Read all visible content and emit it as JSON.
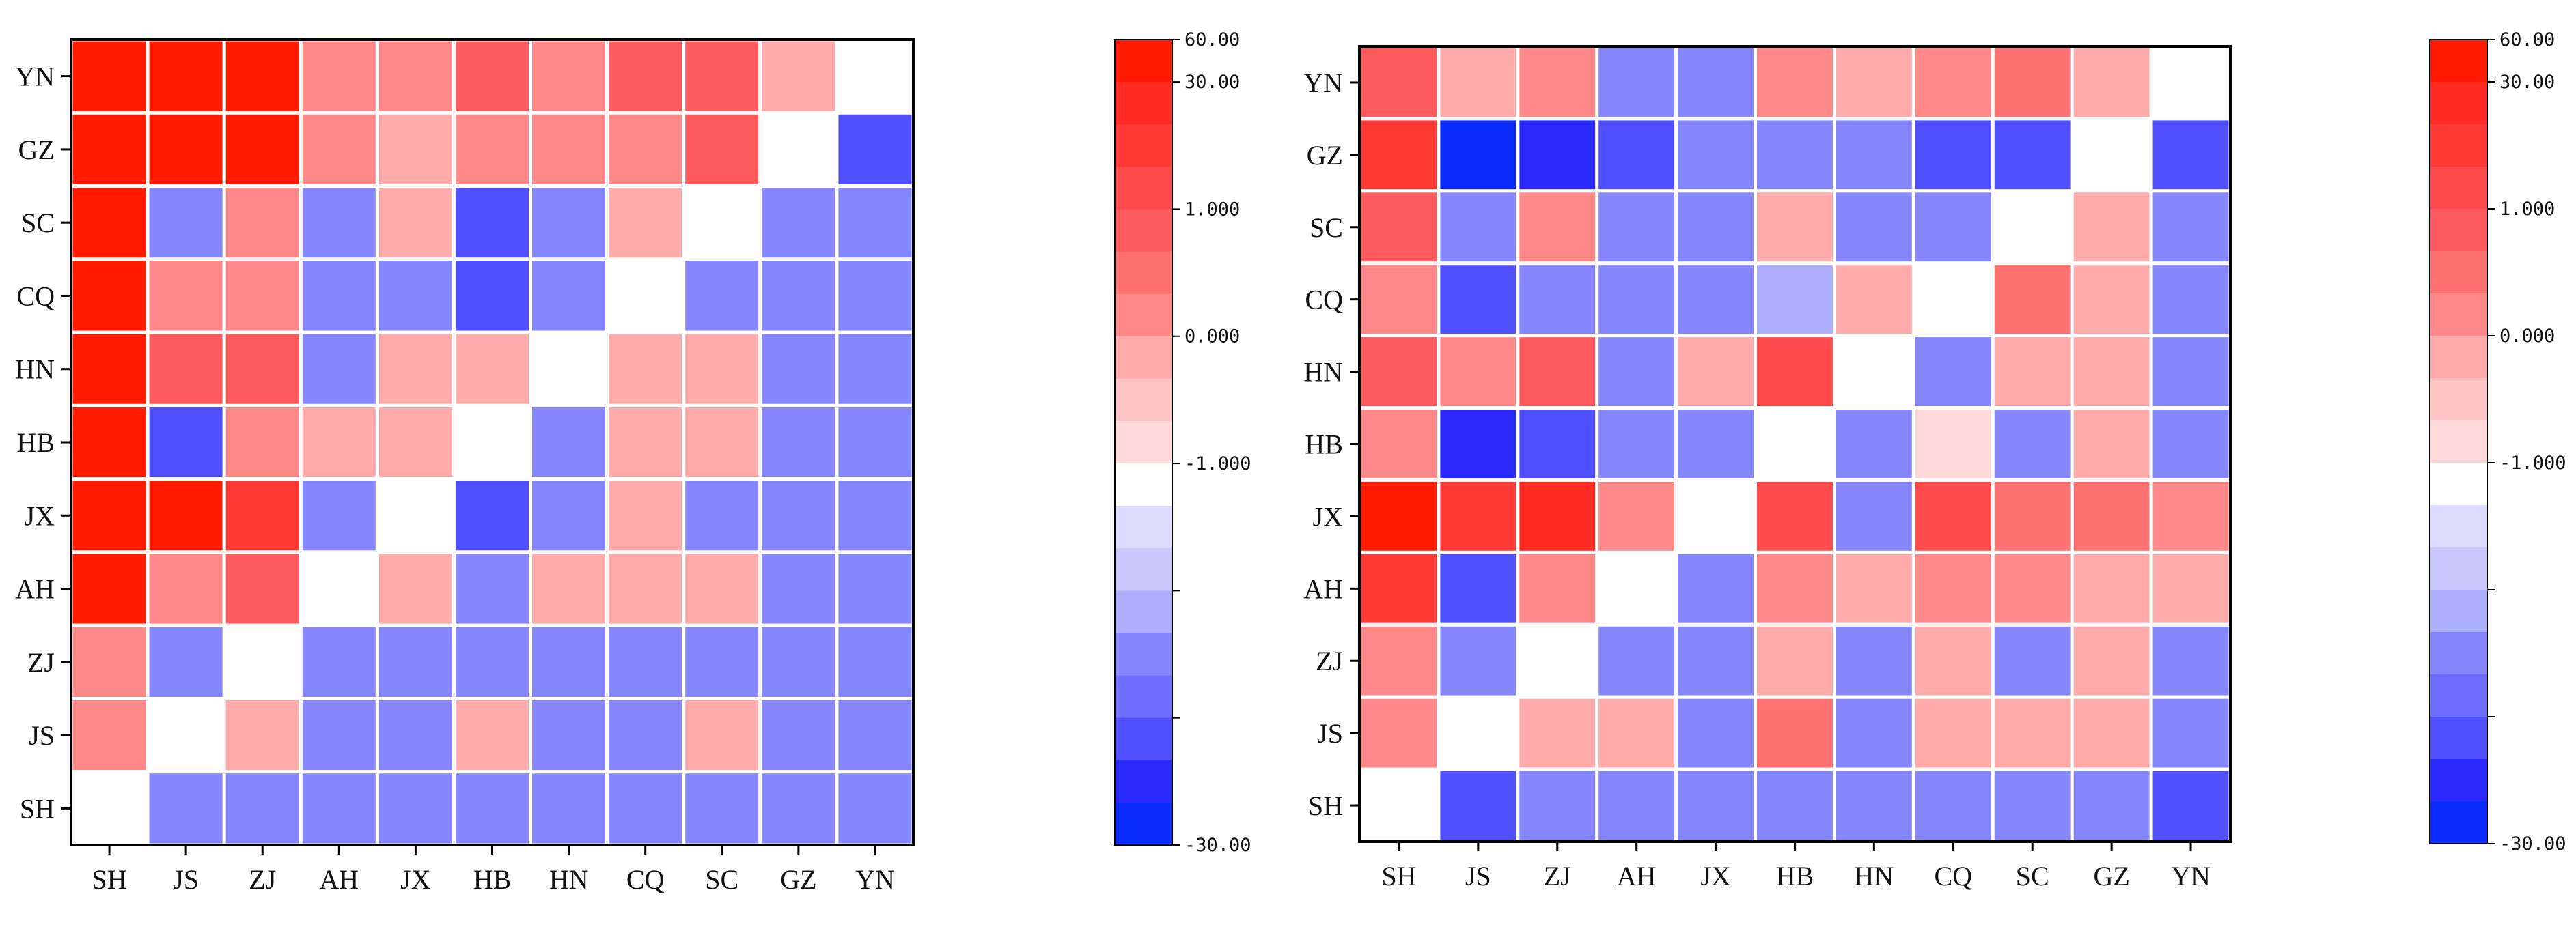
{
  "chart_data": [
    {
      "type": "heatmap",
      "title": "",
      "xlabel": "",
      "ylabel": "",
      "x": [
        "SH",
        "JS",
        "ZJ",
        "AH",
        "JX",
        "HB",
        "HN",
        "CQ",
        "SC",
        "GZ",
        "YN"
      ],
      "y": [
        "SH",
        "JS",
        "ZJ",
        "AH",
        "JX",
        "HB",
        "HN",
        "CQ",
        "SC",
        "GZ",
        "YN"
      ],
      "rows_top_to_bottom": [
        [
          "10",
          "10",
          "10",
          "4",
          "4",
          "6",
          "4",
          "6",
          "6",
          "3",
          "0"
        ],
        [
          "10",
          "10",
          "10",
          "4",
          "3",
          "4",
          "4",
          "4",
          "6",
          "0",
          "-6"
        ],
        [
          "10",
          "-4",
          "4",
          "-4",
          "3",
          "-6",
          "-4",
          "3",
          "0",
          "-4",
          "-4"
        ],
        [
          "10",
          "4",
          "4",
          "-4",
          "-4",
          "-6",
          "-4",
          "0",
          "-4",
          "-4",
          "-4"
        ],
        [
          "10",
          "6",
          "6",
          "-4",
          "3",
          "3",
          "0",
          "3",
          "3",
          "-4",
          "-4"
        ],
        [
          "10",
          "-6",
          "4",
          "3",
          "3",
          "0",
          "-4",
          "3",
          "3",
          "-4",
          "-4"
        ],
        [
          "10",
          "10",
          "8",
          "-4",
          "0",
          "-6",
          "-4",
          "3",
          "-4",
          "-4",
          "-4"
        ],
        [
          "10",
          "4",
          "6",
          "0",
          "3",
          "-4",
          "3",
          "3",
          "3",
          "-4",
          "-4"
        ],
        [
          "4",
          "-4",
          "0",
          "-4",
          "-4",
          "-4",
          "-4",
          "-4",
          "-4",
          "-4",
          "-4"
        ],
        [
          "4",
          "0",
          "3",
          "-4",
          "-4",
          "3",
          "-4",
          "-4",
          "3",
          "-4",
          "-4"
        ],
        [
          "0",
          "-4",
          "-4",
          "-4",
          "-4",
          "-4",
          "-4",
          "-4",
          "-4",
          "-4",
          "-4"
        ]
      ],
      "colorbar": {
        "tick_labels": [
          "60.00",
          "30.00",
          "1.000",
          "0.000",
          "-1.000",
          "-30.00"
        ],
        "levels": [
          10,
          9,
          8,
          7,
          6,
          5,
          4,
          3,
          2,
          1,
          0,
          -1,
          -2,
          -3,
          -4,
          -5,
          -6,
          -7,
          -8
        ]
      }
    },
    {
      "type": "heatmap",
      "title": "",
      "xlabel": "",
      "ylabel": "",
      "x": [
        "SH",
        "JS",
        "ZJ",
        "AH",
        "JX",
        "HB",
        "HN",
        "CQ",
        "SC",
        "GZ",
        "YN"
      ],
      "y": [
        "SH",
        "JS",
        "ZJ",
        "AH",
        "JX",
        "HB",
        "HN",
        "CQ",
        "SC",
        "GZ",
        "YN"
      ],
      "rows_top_to_bottom": [
        [
          "6",
          "3",
          "4",
          "-4",
          "-4",
          "4",
          "3",
          "4",
          "5",
          "3",
          "0"
        ],
        [
          "8",
          "-8",
          "-7",
          "-6",
          "-4",
          "-4",
          "-4",
          "-6",
          "-6",
          "0",
          "-6"
        ],
        [
          "6",
          "-4",
          "4",
          "-4",
          "-4",
          "3",
          "-4",
          "-4",
          "0",
          "3",
          "-4"
        ],
        [
          "4",
          "-6",
          "-4",
          "-4",
          "-4",
          "-3",
          "3",
          "0",
          "5",
          "3",
          "-4"
        ],
        [
          "6",
          "4",
          "6",
          "-4",
          "3",
          "7",
          "0",
          "-4",
          "3",
          "3",
          "-4"
        ],
        [
          "4",
          "-7",
          "-6",
          "-4",
          "-4",
          "0",
          "-4",
          "1",
          "-4",
          "3",
          "-4"
        ],
        [
          "10",
          "8",
          "9",
          "4",
          "0",
          "7",
          "-4",
          "7",
          "5",
          "5",
          "4"
        ],
        [
          "8",
          "-6",
          "4",
          "0",
          "-4",
          "4",
          "3",
          "4",
          "4",
          "3",
          "3"
        ],
        [
          "4",
          "-4",
          "0",
          "-4",
          "-4",
          "3",
          "-4",
          "3",
          "-4",
          "3",
          "-4"
        ],
        [
          "4",
          "0",
          "3",
          "3",
          "-4",
          "5",
          "-4",
          "3",
          "3",
          "3",
          "-4"
        ],
        [
          "0",
          "-6",
          "-4",
          "-4",
          "-4",
          "-4",
          "-4",
          "-4",
          "-4",
          "-4",
          "-6"
        ]
      ],
      "colorbar": {
        "tick_labels": [
          "60.00",
          "30.00",
          "1.000",
          "0.000",
          "-1.000",
          "-30.00"
        ],
        "levels": [
          10,
          9,
          8,
          7,
          6,
          5,
          4,
          3,
          2,
          1,
          0,
          -1,
          -2,
          -3,
          -4,
          -5,
          -6,
          -7,
          -8
        ]
      }
    }
  ],
  "palette": {
    "10": "#ff1a00",
    "9": "#ff2b22",
    "8": "#ff3a36",
    "7": "#ff4a4c",
    "6": "#ff5a5e",
    "5": "#ff7070",
    "4": "#ff8888",
    "3": "#ffabab",
    "2": "#ffc5c5",
    "1": "#ffd9d9",
    "0": "#ffffff",
    "-1": "#dcdcff",
    "-2": "#c8c8ff",
    "-3": "#aeaeff",
    "-4": "#8686ff",
    "-5": "#6d6dff",
    "-6": "#4f4fff",
    "-7": "#2a2aff",
    "-8": "#0a2cff"
  }
}
